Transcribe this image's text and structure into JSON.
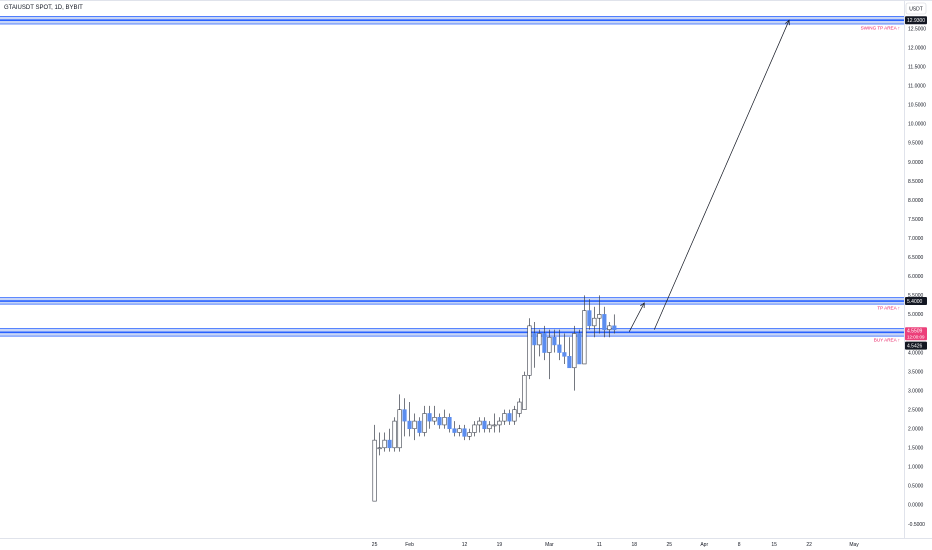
{
  "header": {
    "symbol_line": "GTAIUSDT SPOT, 1D, BYBIT",
    "currency_button": "USDT"
  },
  "colors": {
    "up": "#ffffff",
    "up_border": "#3a3f4a",
    "down": "#5b8def",
    "zone_fill": "#c7d5f7",
    "zone_line": "#2962ff",
    "zone_label": "#e91e63",
    "price_badge": "#131722",
    "current_badge": "#ec407a"
  },
  "chart_data": {
    "type": "candlestick",
    "timeframe": "1D",
    "ylim": [
      -0.5,
      13.25
    ],
    "y_ticks": [
      "-0.5000",
      "0.0000",
      "0.5000",
      "1.0000",
      "1.5000",
      "2.0000",
      "2.5000",
      "3.0000",
      "3.5000",
      "4.0000",
      "4.5000",
      "5.0000",
      "5.5000",
      "6.0000",
      "6.5000",
      "7.0000",
      "7.5000",
      "8.0000",
      "8.5000",
      "9.0000",
      "9.5000",
      "10.0000",
      "10.5000",
      "11.0000",
      "11.5000",
      "12.0000",
      "12.5000"
    ],
    "y_tick_values": [
      -0.5,
      0,
      0.5,
      1,
      1.5,
      2,
      2.5,
      3,
      3.5,
      4,
      4.5,
      5,
      5.5,
      6,
      6.5,
      7,
      7.5,
      8,
      8.5,
      9,
      9.5,
      10,
      10.5,
      11,
      11.5,
      12,
      12.5
    ],
    "x_ticks": [
      {
        "label": "25",
        "day": 0
      },
      {
        "label": "Feb",
        "day": 7
      },
      {
        "label": "12",
        "day": 18
      },
      {
        "label": "19",
        "day": 25
      },
      {
        "label": "Mar",
        "day": 35
      },
      {
        "label": "11",
        "day": 45
      },
      {
        "label": "18",
        "day": 52
      },
      {
        "label": "25",
        "day": 59
      },
      {
        "label": "Apr",
        "day": 66
      },
      {
        "label": "8",
        "day": 73
      },
      {
        "label": "15",
        "day": 80
      },
      {
        "label": "22",
        "day": 87
      },
      {
        "label": "May",
        "day": 96
      }
    ],
    "x_domain": [
      -75,
      106
    ],
    "candles": [
      {
        "o": 0.1,
        "h": 2.1,
        "l": 0.1,
        "c": 1.7
      },
      {
        "o": 1.5,
        "h": 1.9,
        "l": 1.3,
        "c": 1.5
      },
      {
        "o": 1.5,
        "h": 1.9,
        "l": 1.4,
        "c": 1.7
      },
      {
        "o": 1.7,
        "h": 2.0,
        "l": 1.4,
        "c": 1.5
      },
      {
        "o": 1.5,
        "h": 2.3,
        "l": 1.4,
        "c": 2.2
      },
      {
        "o": 1.5,
        "h": 2.9,
        "l": 1.4,
        "c": 2.5
      },
      {
        "o": 2.5,
        "h": 2.8,
        "l": 1.8,
        "c": 2.2
      },
      {
        "o": 2.2,
        "h": 2.7,
        "l": 1.8,
        "c": 2.0
      },
      {
        "o": 2.0,
        "h": 2.4,
        "l": 1.7,
        "c": 2.2
      },
      {
        "o": 2.2,
        "h": 2.3,
        "l": 1.8,
        "c": 1.9
      },
      {
        "o": 1.9,
        "h": 2.6,
        "l": 1.8,
        "c": 2.4
      },
      {
        "o": 2.4,
        "h": 2.6,
        "l": 2.0,
        "c": 2.2
      },
      {
        "o": 2.2,
        "h": 2.6,
        "l": 2.1,
        "c": 2.3
      },
      {
        "o": 2.3,
        "h": 2.4,
        "l": 2.0,
        "c": 2.1
      },
      {
        "o": 2.1,
        "h": 2.5,
        "l": 2.0,
        "c": 2.3
      },
      {
        "o": 2.3,
        "h": 2.4,
        "l": 1.9,
        "c": 2.0
      },
      {
        "o": 2.0,
        "h": 2.2,
        "l": 1.8,
        "c": 1.9
      },
      {
        "o": 1.9,
        "h": 2.1,
        "l": 1.8,
        "c": 2.0
      },
      {
        "o": 2.0,
        "h": 2.1,
        "l": 1.7,
        "c": 1.8
      },
      {
        "o": 1.8,
        "h": 2.0,
        "l": 1.7,
        "c": 1.9
      },
      {
        "o": 1.9,
        "h": 2.2,
        "l": 1.8,
        "c": 2.1
      },
      {
        "o": 2.1,
        "h": 2.3,
        "l": 1.9,
        "c": 2.2
      },
      {
        "o": 2.2,
        "h": 2.3,
        "l": 1.9,
        "c": 2.0
      },
      {
        "o": 2.0,
        "h": 2.2,
        "l": 1.9,
        "c": 2.1
      },
      {
        "o": 2.1,
        "h": 2.4,
        "l": 1.9,
        "c": 2.1
      },
      {
        "o": 2.1,
        "h": 2.3,
        "l": 1.9,
        "c": 2.2
      },
      {
        "o": 2.2,
        "h": 2.5,
        "l": 2.1,
        "c": 2.4
      },
      {
        "o": 2.4,
        "h": 2.5,
        "l": 2.1,
        "c": 2.2
      },
      {
        "o": 2.2,
        "h": 2.6,
        "l": 2.1,
        "c": 2.5
      },
      {
        "o": 2.4,
        "h": 2.8,
        "l": 2.3,
        "c": 2.7
      },
      {
        "o": 2.5,
        "h": 3.5,
        "l": 2.5,
        "c": 3.4
      },
      {
        "o": 3.4,
        "h": 4.9,
        "l": 3.3,
        "c": 4.7
      },
      {
        "o": 4.5,
        "h": 4.8,
        "l": 3.6,
        "c": 4.2
      },
      {
        "o": 4.2,
        "h": 4.6,
        "l": 3.9,
        "c": 4.5
      },
      {
        "o": 4.5,
        "h": 4.7,
        "l": 3.8,
        "c": 4.0
      },
      {
        "o": 4.0,
        "h": 4.6,
        "l": 3.3,
        "c": 4.4
      },
      {
        "o": 4.4,
        "h": 4.6,
        "l": 4.0,
        "c": 4.2
      },
      {
        "o": 4.2,
        "h": 4.6,
        "l": 3.8,
        "c": 4.0
      },
      {
        "o": 4.0,
        "h": 4.5,
        "l": 3.7,
        "c": 3.9
      },
      {
        "o": 3.9,
        "h": 4.4,
        "l": 3.6,
        "c": 3.6
      },
      {
        "o": 3.6,
        "h": 4.7,
        "l": 3.0,
        "c": 4.5
      },
      {
        "o": 4.5,
        "h": 4.6,
        "l": 3.7,
        "c": 3.7
      },
      {
        "o": 3.7,
        "h": 5.5,
        "l": 3.7,
        "c": 5.1
      },
      {
        "o": 5.1,
        "h": 5.4,
        "l": 4.6,
        "c": 4.7
      },
      {
        "o": 4.7,
        "h": 5.2,
        "l": 4.4,
        "c": 4.9
      },
      {
        "o": 4.9,
        "h": 5.5,
        "l": 4.5,
        "c": 5.0
      },
      {
        "o": 5.0,
        "h": 5.2,
        "l": 4.4,
        "c": 4.6
      },
      {
        "o": 4.6,
        "h": 4.8,
        "l": 4.4,
        "c": 4.7
      },
      {
        "o": 4.7,
        "h": 5.0,
        "l": 4.5,
        "c": 4.6
      }
    ],
    "zones": [
      {
        "label": "SWING TP AREA ↑",
        "y_low": 12.62,
        "y_high": 12.82,
        "line": 12.72,
        "badge": "12.9300"
      },
      {
        "label": "TP AREA ↑",
        "y_low": 5.27,
        "y_high": 5.44,
        "line": 5.35,
        "badge": "5.4000"
      },
      {
        "label": "BUY AREA ↑",
        "y_low": 4.43,
        "y_high": 4.63,
        "line": 4.53,
        "badge": "4.5509"
      }
    ],
    "current_price": {
      "badge": "4.5509",
      "countdown": "12:00:09"
    },
    "extra_badge": {
      "value": "4.5426",
      "y": 4.18
    },
    "arrows": [
      {
        "from": [
          51,
          4.55
        ],
        "to": [
          54,
          5.3
        ]
      },
      {
        "from": [
          56,
          4.6
        ],
        "to": [
          83,
          12.72
        ]
      }
    ]
  }
}
